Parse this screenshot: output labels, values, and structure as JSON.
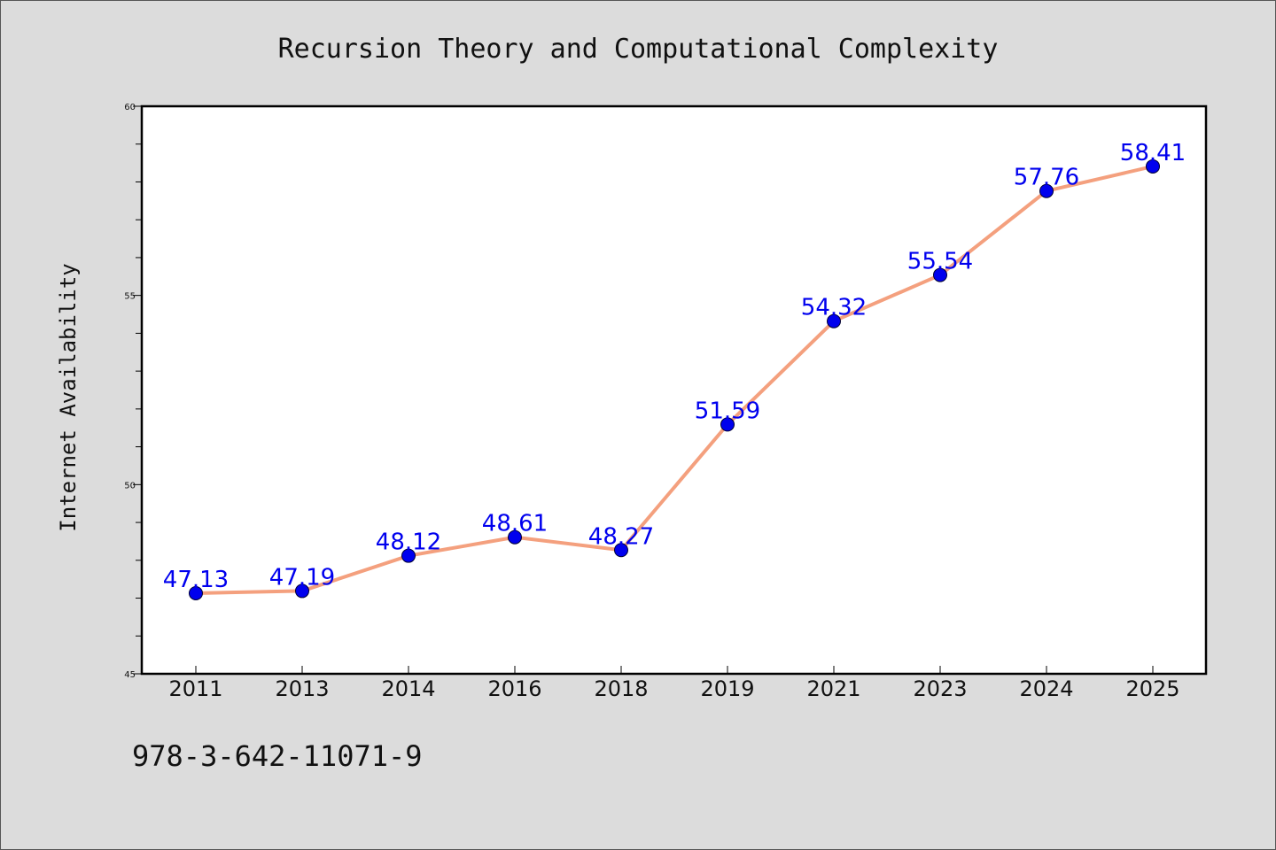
{
  "chart_data": {
    "type": "line",
    "title": "Recursion Theory and Computational Complexity",
    "xlabel": "",
    "ylabel": "Internet Availability",
    "categories": [
      "2011",
      "2013",
      "2014",
      "2016",
      "2018",
      "2019",
      "2021",
      "2023",
      "2024",
      "2025"
    ],
    "series": [
      {
        "values": [
          47.13,
          47.19,
          48.12,
          48.61,
          48.27,
          51.59,
          54.32,
          55.54,
          57.76,
          58.41
        ],
        "data_labels": [
          "47.13",
          "47.19",
          "48.12",
          "48.61",
          "48.27",
          "51.59",
          "54.32",
          "55.54",
          "57.76",
          "58.41"
        ],
        "line_color": "#f4a07e",
        "marker_color": "#0000ee"
      }
    ],
    "ylim": [
      45,
      60
    ],
    "yticks": [
      "45",
      "50",
      "55",
      "60"
    ],
    "grid": false,
    "legend": "none",
    "label_color": "#0000ee"
  },
  "footer": {
    "isbn": "978-3-642-11071-9"
  }
}
